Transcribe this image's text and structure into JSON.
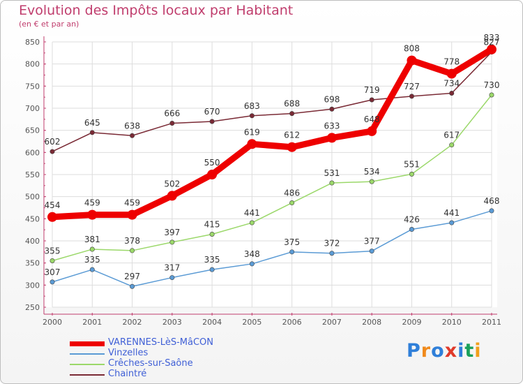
{
  "title": "Evolution des Impôts locaux par Habitant",
  "subtitle": "(en € et par an)",
  "logo": {
    "text": "Proxiti",
    "letters": [
      "P",
      "r",
      "o",
      "x",
      "i",
      "t",
      "i"
    ],
    "colors": [
      "#2f7fd9",
      "#f08a1c",
      "#2f7fd9",
      "#e03a2a",
      "#2f7fd9",
      "#1aa05a",
      "#f0a01c"
    ]
  },
  "chart_data": {
    "type": "line",
    "x": [
      "2000",
      "2001",
      "2002",
      "2003",
      "2004",
      "2005",
      "2006",
      "2007",
      "2008",
      "2009",
      "2010",
      "2011"
    ],
    "ylim": [
      250,
      850
    ],
    "yticks": [
      "250",
      "300",
      "350",
      "400",
      "450",
      "500",
      "550",
      "600",
      "650",
      "700",
      "750",
      "800",
      "850"
    ],
    "grid": true,
    "series": [
      {
        "name": "VARENNES-LèS-MâCON",
        "color": "#ee0000",
        "values": [
          454,
          459,
          459,
          502,
          550,
          619,
          612,
          633,
          648,
          808,
          778,
          833
        ],
        "labels": [
          "454",
          "459",
          "459",
          "502",
          "550",
          "619",
          "612",
          "633",
          "648",
          "808",
          "778",
          "833"
        ]
      },
      {
        "name": "Vinzelles",
        "color": "#5b9bd5",
        "values": [
          307,
          335,
          297,
          317,
          335,
          348,
          375,
          372,
          377,
          426,
          441,
          468
        ],
        "labels": [
          "307",
          "335",
          "297",
          "317",
          "335",
          "348",
          "375",
          "372",
          "377",
          "426",
          "441",
          "468"
        ]
      },
      {
        "name": "Crêches-sur-Saône",
        "color": "#9bd86a",
        "values": [
          355,
          381,
          378,
          397,
          415,
          441,
          486,
          531,
          534,
          551,
          617,
          730
        ],
        "labels": [
          "355",
          "381",
          "378",
          "397",
          "415",
          "441",
          "486",
          "531",
          "534",
          "551",
          "617",
          "730"
        ]
      },
      {
        "name": "Chaintré",
        "color": "#7a2a35",
        "values": [
          602,
          645,
          638,
          666,
          670,
          683,
          688,
          698,
          719,
          727,
          734,
          827
        ],
        "labels": [
          "602",
          "645",
          "638",
          "666",
          "670",
          "683",
          "688",
          "698",
          "719",
          "727",
          "734",
          "827"
        ]
      }
    ]
  }
}
